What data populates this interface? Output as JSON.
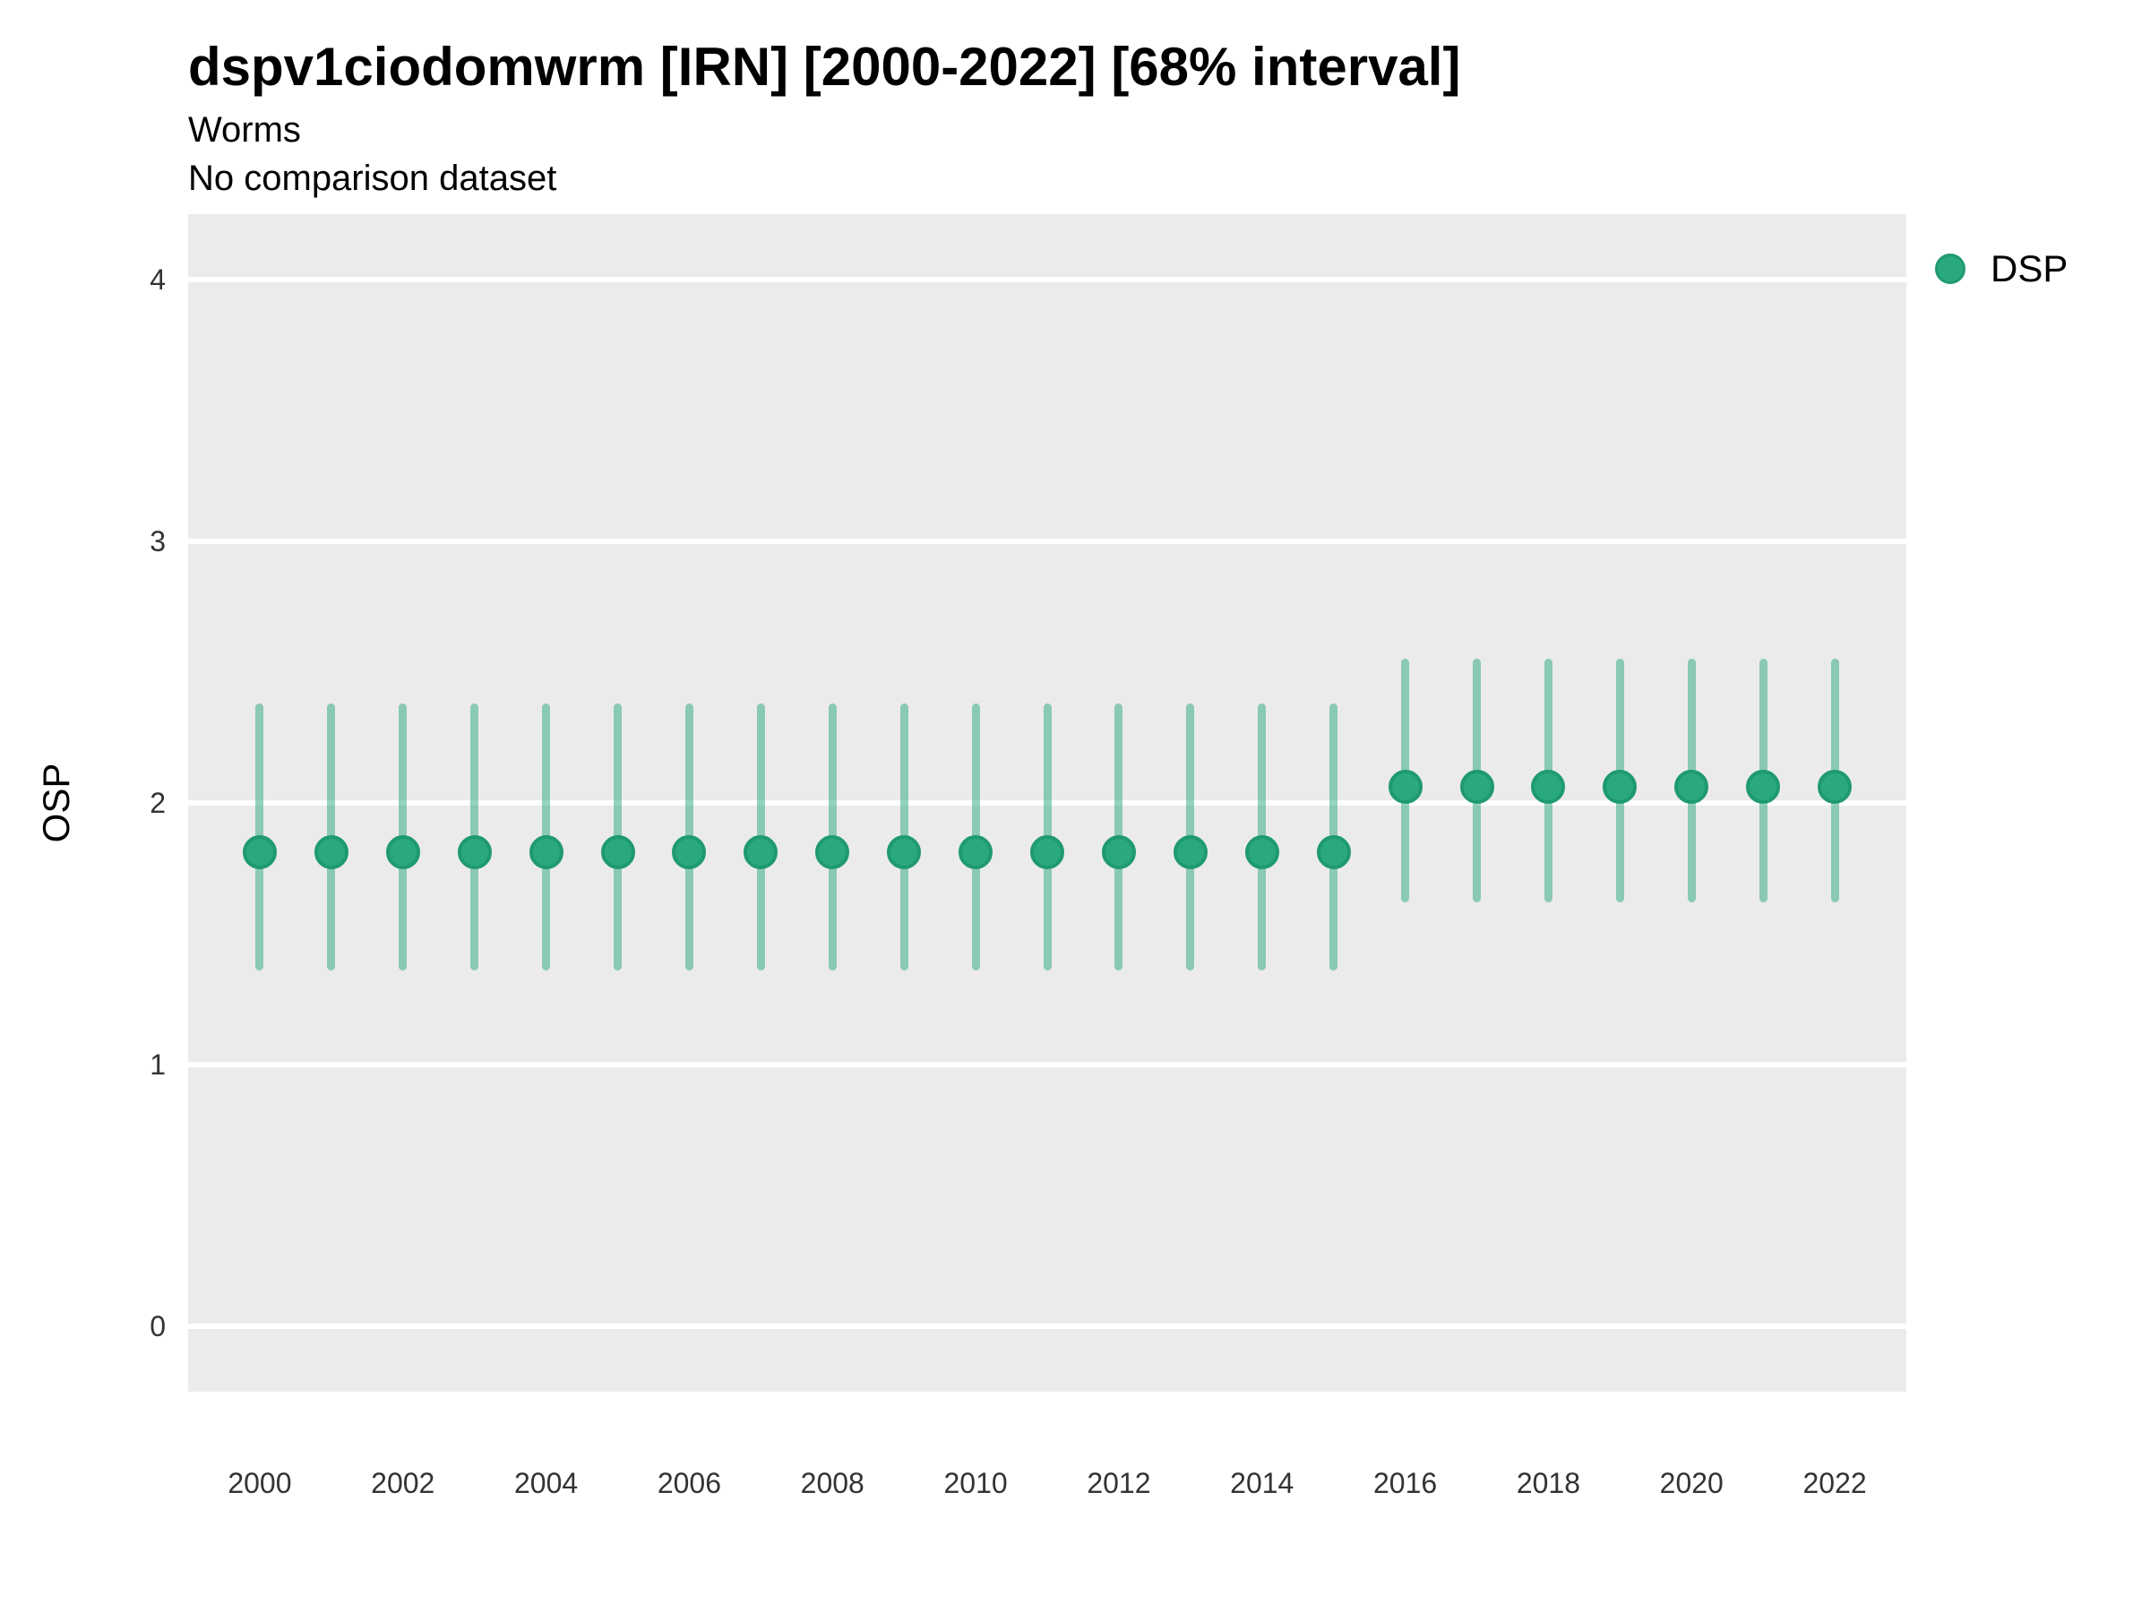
{
  "header": {
    "title": "dspv1ciodomwrm [IRN] [2000-2022] [68% interval]",
    "subtitle": "Worms",
    "note": "No comparison dataset"
  },
  "legend": {
    "position": "right-top",
    "items": [
      {
        "label": "DSP",
        "marker": "circle"
      }
    ]
  },
  "colors": {
    "panel_bg": "#ebebeb",
    "gridline": "#ffffff",
    "point_fill": "#2aa87e",
    "point_stroke": "#1f9a70",
    "error_bar": "rgba(42,168,126,0.5)",
    "title_text": "#000000",
    "tick_text": "#333333"
  },
  "chart_data": {
    "type": "scatter",
    "title": "dspv1ciodomwrm [IRN] [2000-2022] [68% interval]",
    "subtitle": "Worms",
    "note": "No comparison dataset",
    "xlabel": "",
    "ylabel": "OSP",
    "interval_label": "68% interval",
    "grid": "horizontal-major-only",
    "legend_position": "right-top",
    "xlim": [
      1999,
      2023
    ],
    "ylim": [
      -0.25,
      4.25
    ],
    "x_ticks": [
      2000,
      2002,
      2004,
      2006,
      2008,
      2010,
      2012,
      2014,
      2016,
      2018,
      2020,
      2022
    ],
    "y_ticks": [
      0,
      1,
      2,
      3,
      4
    ],
    "series": [
      {
        "name": "DSP",
        "points": [
          {
            "x": 2000,
            "y": 1.81,
            "lo": 1.36,
            "hi": 2.38
          },
          {
            "x": 2001,
            "y": 1.81,
            "lo": 1.36,
            "hi": 2.38
          },
          {
            "x": 2002,
            "y": 1.81,
            "lo": 1.36,
            "hi": 2.38
          },
          {
            "x": 2003,
            "y": 1.81,
            "lo": 1.36,
            "hi": 2.38
          },
          {
            "x": 2004,
            "y": 1.81,
            "lo": 1.36,
            "hi": 2.38
          },
          {
            "x": 2005,
            "y": 1.81,
            "lo": 1.36,
            "hi": 2.38
          },
          {
            "x": 2006,
            "y": 1.81,
            "lo": 1.36,
            "hi": 2.38
          },
          {
            "x": 2007,
            "y": 1.81,
            "lo": 1.36,
            "hi": 2.38
          },
          {
            "x": 2008,
            "y": 1.81,
            "lo": 1.36,
            "hi": 2.38
          },
          {
            "x": 2009,
            "y": 1.81,
            "lo": 1.36,
            "hi": 2.38
          },
          {
            "x": 2010,
            "y": 1.81,
            "lo": 1.36,
            "hi": 2.38
          },
          {
            "x": 2011,
            "y": 1.81,
            "lo": 1.36,
            "hi": 2.38
          },
          {
            "x": 2012,
            "y": 1.81,
            "lo": 1.36,
            "hi": 2.38
          },
          {
            "x": 2013,
            "y": 1.81,
            "lo": 1.36,
            "hi": 2.38
          },
          {
            "x": 2014,
            "y": 1.81,
            "lo": 1.36,
            "hi": 2.38
          },
          {
            "x": 2015,
            "y": 1.81,
            "lo": 1.36,
            "hi": 2.38
          },
          {
            "x": 2016,
            "y": 2.06,
            "lo": 1.62,
            "hi": 2.55
          },
          {
            "x": 2017,
            "y": 2.06,
            "lo": 1.62,
            "hi": 2.55
          },
          {
            "x": 2018,
            "y": 2.06,
            "lo": 1.62,
            "hi": 2.55
          },
          {
            "x": 2019,
            "y": 2.06,
            "lo": 1.62,
            "hi": 2.55
          },
          {
            "x": 2020,
            "y": 2.06,
            "lo": 1.62,
            "hi": 2.55
          },
          {
            "x": 2021,
            "y": 2.06,
            "lo": 1.62,
            "hi": 2.55
          },
          {
            "x": 2022,
            "y": 2.06,
            "lo": 1.62,
            "hi": 2.55
          }
        ]
      }
    ]
  }
}
